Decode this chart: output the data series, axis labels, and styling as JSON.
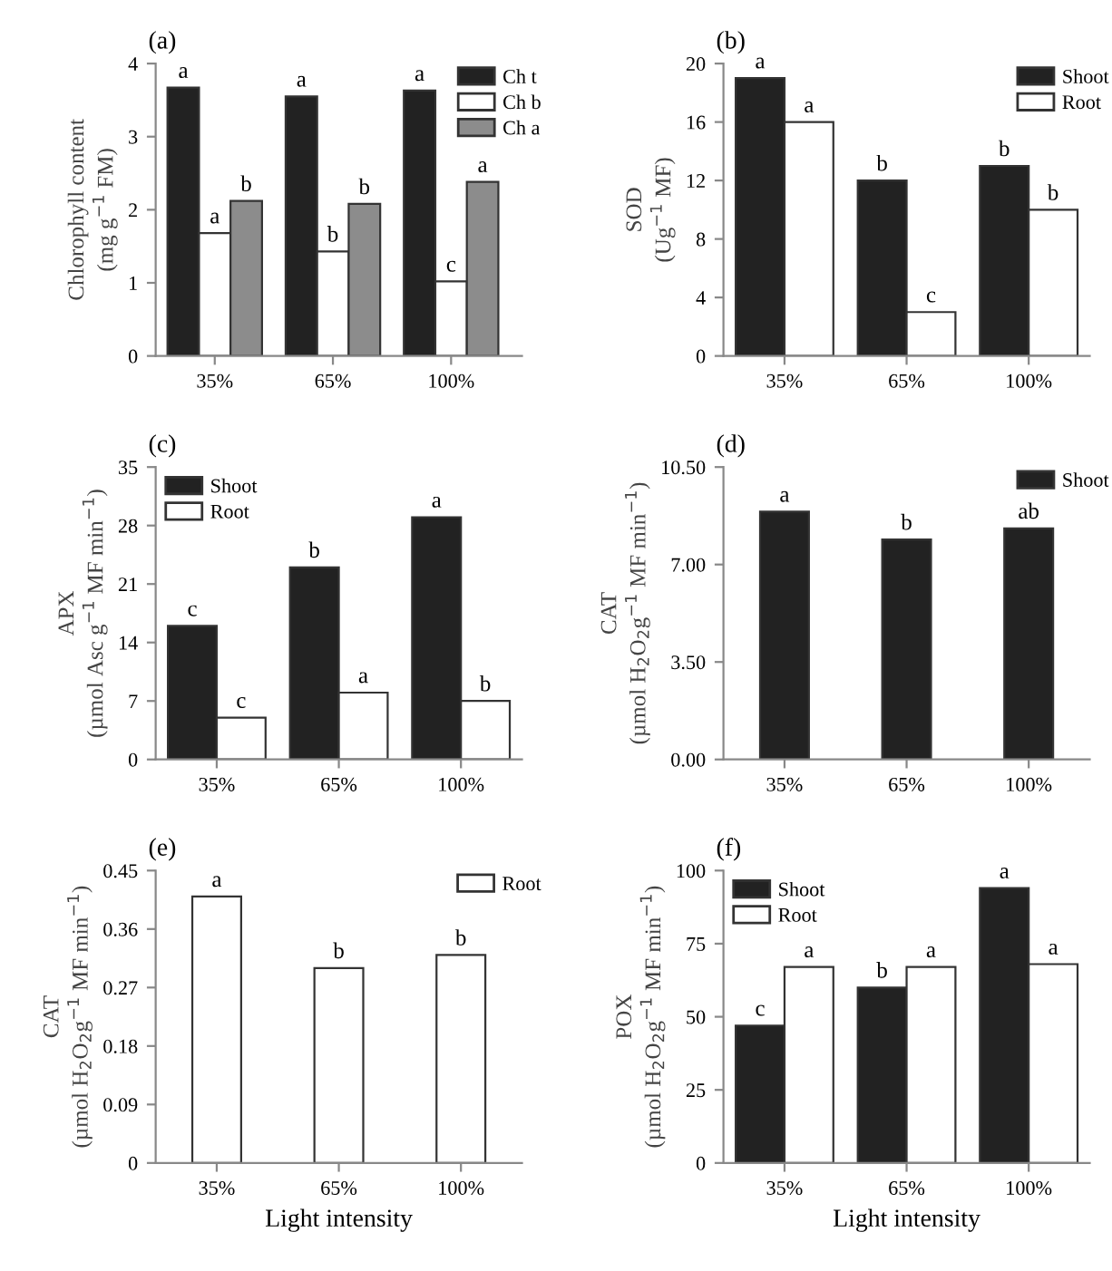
{
  "chart_data": [
    {
      "type": "bar",
      "title": "(a)",
      "ylabel": "Chlorophyll content\n(mg g$^{−1}$ FM)",
      "categories": [
        "35%",
        "65%",
        "100%"
      ],
      "ylim": [
        0,
        4
      ],
      "yticks": [
        0,
        1,
        2,
        3,
        4
      ],
      "grid": false,
      "legend": "top right",
      "series": [
        {
          "name": "Ch t",
          "color": "#222222",
          "values": [
            3.67,
            3.55,
            3.63
          ],
          "value_labels": [
            "a",
            "a",
            "a"
          ]
        },
        {
          "name": "Ch b",
          "color": "#ffffff",
          "values": [
            1.68,
            1.43,
            1.02
          ],
          "value_labels": [
            "a",
            "b",
            "c"
          ]
        },
        {
          "name": "Ch a",
          "color": "#8c8c8c",
          "values": [
            2.12,
            2.08,
            2.38
          ],
          "value_labels": [
            "b",
            "b",
            "a"
          ]
        }
      ]
    },
    {
      "type": "bar",
      "title": "(b)",
      "ylabel": "SOD\n(Ug$^{−1}$ MF)",
      "categories": [
        "35%",
        "65%",
        "100%"
      ],
      "ylim": [
        0,
        20
      ],
      "yticks": [
        0,
        4,
        8,
        12,
        16,
        20
      ],
      "grid": false,
      "legend": "top right",
      "series": [
        {
          "name": "Shoot",
          "color": "#222222",
          "values": [
            19,
            12,
            13
          ],
          "value_labels": [
            "a",
            "b",
            "b"
          ]
        },
        {
          "name": "Root",
          "color": "#ffffff",
          "values": [
            16,
            3,
            10
          ],
          "value_labels": [
            "a",
            "c",
            "b"
          ]
        }
      ]
    },
    {
      "type": "bar",
      "title": "(c)",
      "ylabel": "APX\n(µmol Asc g$^{−1}$ MF min$^{−1}$)",
      "categories": [
        "35%",
        "65%",
        "100%"
      ],
      "ylim": [
        0,
        35
      ],
      "yticks": [
        0,
        7,
        14,
        21,
        28,
        35
      ],
      "grid": false,
      "legend": "top left",
      "series": [
        {
          "name": "Shoot",
          "color": "#222222",
          "values": [
            16,
            23,
            29
          ],
          "value_labels": [
            "c",
            "b",
            "a"
          ]
        },
        {
          "name": "Root",
          "color": "#ffffff",
          "values": [
            5,
            8,
            7
          ],
          "value_labels": [
            "c",
            "a",
            "b"
          ]
        }
      ]
    },
    {
      "type": "bar",
      "title": "(d)",
      "ylabel": "CAT\n(µmol H$_{2}$O$_{2}$g$^{−1}$ MF min$^{−1}$)",
      "categories": [
        "35%",
        "65%",
        "100%"
      ],
      "ylim": [
        0,
        10.5
      ],
      "yticks": [
        {
          "value": 0,
          "label": "0.00"
        },
        {
          "value": 3.5,
          "label": "3.50"
        },
        {
          "value": 7,
          "label": "7.00"
        },
        {
          "value": 10.5,
          "label": "10.50"
        }
      ],
      "grid": false,
      "legend": "top right",
      "series": [
        {
          "name": "Shoot",
          "color": "#222222",
          "values": [
            8.9,
            7.9,
            8.3
          ],
          "value_labels": [
            "a",
            "b",
            "ab"
          ]
        }
      ]
    },
    {
      "type": "bar",
      "title": "(e)",
      "xlabel": "Light intensity",
      "ylabel": "CAT\n(µmol H$_{2}$O$_{2}$g$^{−1}$ MF min$^{−1}$)",
      "categories": [
        "35%",
        "65%",
        "100%"
      ],
      "ylim": [
        0,
        0.45
      ],
      "yticks": [
        0,
        0.09,
        0.18,
        0.27,
        0.36,
        0.45
      ],
      "grid": false,
      "legend": "top right",
      "series": [
        {
          "name": "Root",
          "color": "#ffffff",
          "values": [
            0.41,
            0.3,
            0.32
          ],
          "value_labels": [
            "a",
            "b",
            "b"
          ]
        }
      ]
    },
    {
      "type": "bar",
      "title": "(f)",
      "xlabel": "Light intensity",
      "ylabel": "POX\n(µmol H$_{2}$O$_{2}$g$^{−1}$ MF min$^{−1}$)",
      "categories": [
        "35%",
        "65%",
        "100%"
      ],
      "ylim": [
        0,
        100
      ],
      "yticks": [
        0,
        25,
        50,
        75,
        100
      ],
      "grid": false,
      "legend": "top left",
      "series": [
        {
          "name": "Shoot",
          "color": "#222222",
          "values": [
            47,
            60,
            94
          ],
          "value_labels": [
            "c",
            "b",
            "a"
          ]
        },
        {
          "name": "Root",
          "color": "#ffffff",
          "values": [
            67,
            67,
            68
          ],
          "value_labels": [
            "a",
            "a",
            "a"
          ]
        }
      ]
    }
  ]
}
